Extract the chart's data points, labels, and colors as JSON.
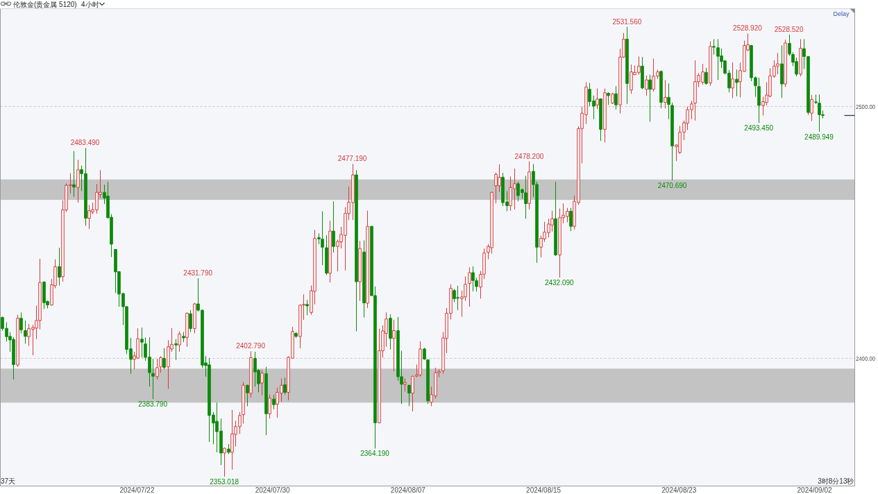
{
  "chart_data": {
    "type": "candlestick",
    "title": "伦敦金(贵金属 5120)",
    "subtitle": "4小时",
    "categories": [
      null,
      null,
      null,
      null,
      null,
      null,
      null,
      null,
      null,
      null,
      null,
      null,
      null,
      null,
      null,
      null,
      null,
      null,
      null,
      null,
      null,
      null,
      null,
      null,
      null,
      null,
      null,
      null,
      null,
      null,
      null,
      null,
      null,
      null,
      null,
      null,
      "2024/07/22",
      null,
      null,
      null,
      null,
      null,
      null,
      null,
      null,
      null,
      null,
      null,
      null,
      null,
      null,
      null,
      null,
      null,
      null,
      null,
      null,
      null,
      null,
      null,
      null,
      null,
      null,
      null,
      null,
      null,
      null,
      null,
      null,
      null,
      null,
      null,
      "2024/07/30",
      null,
      null,
      null,
      null,
      null,
      null,
      null,
      null,
      null,
      null,
      null,
      null,
      null,
      null,
      null,
      null,
      null,
      null,
      null,
      null,
      null,
      null,
      null,
      null,
      null,
      null,
      null,
      null,
      null,
      null,
      null,
      null,
      null,
      null,
      null,
      "2024/08/07",
      null,
      null,
      null,
      null,
      null,
      null,
      null,
      null,
      null,
      null,
      null,
      null,
      null,
      null,
      null,
      null,
      null,
      null,
      null,
      null,
      null,
      null,
      null,
      null,
      null,
      null,
      null,
      null,
      null,
      null,
      null,
      null,
      null,
      null,
      null,
      "2024/08/15",
      null,
      null,
      null,
      null,
      null,
      null,
      null,
      null,
      null,
      null,
      null,
      null,
      null,
      null,
      null,
      null,
      null,
      null,
      null,
      null,
      null,
      null,
      null,
      null,
      null,
      null,
      null,
      null,
      null,
      null,
      null,
      null,
      null,
      null,
      null,
      "2024/08/23",
      null,
      null,
      null,
      null,
      null,
      null,
      null,
      null,
      null,
      null,
      null,
      null,
      null,
      null,
      null,
      null,
      null,
      null,
      null,
      null,
      null,
      null,
      null,
      null,
      null,
      null,
      null,
      null,
      null,
      null,
      null,
      null,
      null,
      null,
      null,
      "2024/09/02",
      null,
      null
    ],
    "ohlc": [
      [
        2416.2,
        2416.6,
        2410.9,
        2411.8
      ],
      [
        2411.9,
        2414.3,
        2406.7,
        2408.6
      ],
      [
        2408.7,
        2410.4,
        2402.6,
        2407.3
      ],
      [
        2407.5,
        2408.4,
        2391.6,
        2397.5
      ],
      [
        2397.3,
        2417.3,
        2396.6,
        2415.9
      ],
      [
        2415.9,
        2418.2,
        2409.9,
        2411.3
      ],
      [
        2411.0,
        2415.0,
        2405.8,
        2408.7
      ],
      [
        2408.6,
        2413.6,
        2404.9,
        2411.8
      ],
      [
        2411.5,
        2413.3,
        2401.2,
        2412.2
      ],
      [
        2412.0,
        2420.9,
        2407.6,
        2415.0
      ],
      [
        2415.0,
        2439.5,
        2411.5,
        2430.1
      ],
      [
        2430.3,
        2430.6,
        2419.6,
        2422.1
      ],
      [
        2422.6,
        2422.9,
        2419.8,
        2421.2
      ],
      [
        2421.2,
        2431.5,
        2420.9,
        2429.2
      ],
      [
        2428.8,
        2439.3,
        2427.8,
        2436.4
      ],
      [
        2436.4,
        2443.9,
        2428.9,
        2432.2
      ],
      [
        2432.4,
        2462.7,
        2430.4,
        2458.9
      ],
      [
        2458.9,
        2469.4,
        2458.1,
        2468.7
      ],
      [
        2468.6,
        2473.5,
        2465.5,
        2468.9
      ],
      [
        2468.9,
        2482.2,
        2464.1,
        2468.0
      ],
      [
        2467.8,
        2478.8,
        2461.8,
        2474.8
      ],
      [
        2474.9,
        2476.5,
        2466.4,
        2473.3
      ],
      [
        2473.3,
        2483.49,
        2452.6,
        2455.6
      ],
      [
        2455.6,
        2460.9,
        2451.3,
        2458.6
      ],
      [
        2458.1,
        2461.8,
        2457.2,
        2459.0
      ],
      [
        2458.9,
        2469.2,
        2457.4,
        2465.9
      ],
      [
        2465.0,
        2474.7,
        2463.6,
        2465.9
      ],
      [
        2465.9,
        2468.9,
        2461.3,
        2463.6
      ],
      [
        2464.4,
        2470.1,
        2455.5,
        2455.8
      ],
      [
        2456.0,
        2457.2,
        2440.2,
        2445.3
      ],
      [
        2443.2,
        2443.4,
        2426.0,
        2434.3
      ],
      [
        2434.4,
        2434.6,
        2420.5,
        2425.5
      ],
      [
        2425.7,
        2426.0,
        2413.2,
        2420.5
      ],
      [
        2420.5,
        2420.8,
        2401.7,
        2403.5
      ],
      [
        2403.8,
        2408.1,
        2393.9,
        2399.6
      ],
      [
        2399.6,
        2402.6,
        2395.7,
        2401.0
      ],
      [
        2400.1,
        2411.9,
        2399.8,
        2407.8
      ],
      [
        2407.6,
        2412.2,
        2400.3,
        2406.4
      ],
      [
        2405.7,
        2408.3,
        2399.0,
        2400.4
      ],
      [
        2400.5,
        2408.3,
        2388.8,
        2394.3
      ],
      [
        2394.0,
        2399.8,
        2383.79,
        2392.9
      ],
      [
        2392.7,
        2399.8,
        2391.6,
        2396.3
      ],
      [
        2396.6,
        2400.8,
        2394.3,
        2400.3
      ],
      [
        2400.0,
        2404.0,
        2395.7,
        2396.4
      ],
      [
        2396.6,
        2407.2,
        2387.9,
        2404.6
      ],
      [
        2403.7,
        2412.0,
        2402.6,
        2405.5
      ],
      [
        2405.8,
        2407.6,
        2399.4,
        2405.3
      ],
      [
        2405.3,
        2410.7,
        2402.6,
        2409.7
      ],
      [
        2408.7,
        2410.4,
        2406.4,
        2408.1
      ],
      [
        2408.3,
        2418.2,
        2404.6,
        2417.9
      ],
      [
        2417.7,
        2419.1,
        2410.4,
        2411.8
      ],
      [
        2411.8,
        2422.0,
        2409.9,
        2421.6
      ],
      [
        2421.6,
        2431.79,
        2418.6,
        2419.1
      ],
      [
        2419.1,
        2419.3,
        2396.2,
        2397.3
      ],
      [
        2398.2,
        2400.9,
        2392.7,
        2397.1
      ],
      [
        2397.4,
        2400.1,
        2366.8,
        2377.3
      ],
      [
        2377.5,
        2378.7,
        2365.9,
        2374.3
      ],
      [
        2375.0,
        2382.4,
        2362.7,
        2370.9
      ],
      [
        2371.1,
        2376.1,
        2357.6,
        2362.4
      ],
      [
        2362.4,
        2364.5,
        2353.018,
        2364.3
      ],
      [
        2364.0,
        2365.9,
        2362.0,
        2362.7
      ],
      [
        2362.7,
        2379.5,
        2355.8,
        2370.0
      ],
      [
        2369.8,
        2375.2,
        2365.0,
        2372.9
      ],
      [
        2372.9,
        2378.7,
        2370.0,
        2377.3
      ],
      [
        2377.6,
        2390.6,
        2374.1,
        2389.3
      ],
      [
        2389.3,
        2389.5,
        2381.0,
        2386.3
      ],
      [
        2386.1,
        2402.79,
        2384.4,
        2400.3
      ],
      [
        2400.0,
        2402.6,
        2388.8,
        2394.6
      ],
      [
        2395.2,
        2395.7,
        2386.5,
        2389.9
      ],
      [
        2390.2,
        2395.4,
        2385.3,
        2394.1
      ],
      [
        2393.9,
        2396.6,
        2369.5,
        2378.0
      ],
      [
        2378.0,
        2385.6,
        2376.1,
        2384.2
      ],
      [
        2383.8,
        2385.6,
        2379.8,
        2381.6
      ],
      [
        2381.8,
        2388.4,
        2376.4,
        2386.5
      ],
      [
        2386.2,
        2392.0,
        2382.8,
        2389.3
      ],
      [
        2389.5,
        2392.3,
        2385.6,
        2386.5
      ],
      [
        2386.5,
        2400.8,
        2383.3,
        2400.4
      ],
      [
        2400.0,
        2412.5,
        2399.9,
        2410.7
      ],
      [
        2409.9,
        2410.4,
        2408.1,
        2408.7
      ],
      [
        2408.7,
        2421.4,
        2404.0,
        2421.1
      ],
      [
        2421.1,
        2425.4,
        2415.3,
        2421.4
      ],
      [
        2421.4,
        2423.2,
        2417.1,
        2420.8
      ],
      [
        2418.2,
        2428.9,
        2417.3,
        2426.8
      ],
      [
        2426.6,
        2451.0,
        2421.4,
        2447.6
      ],
      [
        2447.9,
        2449.6,
        2445.3,
        2447.4
      ],
      [
        2447.3,
        2458.3,
        2437.0,
        2444.1
      ],
      [
        2443.9,
        2448.9,
        2433.1,
        2433.8
      ],
      [
        2433.8,
        2454.6,
        2430.1,
        2450.5
      ],
      [
        2450.5,
        2462.3,
        2442.0,
        2444.4
      ],
      [
        2444.4,
        2447.1,
        2434.5,
        2446.4
      ],
      [
        2446.2,
        2452.2,
        2443.6,
        2449.2
      ],
      [
        2448.8,
        2460.0,
        2434.9,
        2457.5
      ],
      [
        2457.5,
        2468.2,
        2454.9,
        2462.0
      ],
      [
        2461.8,
        2477.19,
        2454.9,
        2472.8
      ],
      [
        2472.8,
        2474.7,
        2410.7,
        2430.4
      ],
      [
        2430.4,
        2446.6,
        2422.8,
        2443.6
      ],
      [
        2442.2,
        2446.8,
        2416.2,
        2422.0
      ],
      [
        2421.9,
        2458.6,
        2420.0,
        2452.4
      ],
      [
        2452.4,
        2452.6,
        2424.7,
        2424.9
      ],
      [
        2424.9,
        2428.5,
        2364.19,
        2374.4
      ],
      [
        2374.4,
        2411.8,
        2374.2,
        2403.0
      ],
      [
        2403.0,
        2413.1,
        2400.3,
        2410.9
      ],
      [
        2409.9,
        2418.2,
        2404.6,
        2415.6
      ],
      [
        2415.9,
        2417.5,
        2403.5,
        2407.9
      ],
      [
        2407.9,
        2415.3,
        2394.8,
        2411.0
      ],
      [
        2411.0,
        2416.4,
        2391.1,
        2392.7
      ],
      [
        2392.7,
        2403.0,
        2381.9,
        2389.7
      ],
      [
        2389.7,
        2392.0,
        2386.8,
        2390.4
      ],
      [
        2389.3,
        2389.5,
        2381.0,
        2386.2
      ],
      [
        2386.2,
        2393.0,
        2378.9,
        2392.9
      ],
      [
        2392.9,
        2397.5,
        2392.5,
        2393.4
      ],
      [
        2393.4,
        2406.7,
        2392.7,
        2403.7
      ],
      [
        2403.7,
        2404.2,
        2399.4,
        2399.7
      ],
      [
        2399.4,
        2399.6,
        2381.9,
        2383.1
      ],
      [
        2382.6,
        2388.8,
        2381.0,
        2385.6
      ],
      [
        2385.1,
        2396.3,
        2384.0,
        2394.3
      ],
      [
        2394.3,
        2395.7,
        2392.5,
        2394.8
      ],
      [
        2395.1,
        2410.4,
        2393.9,
        2408.1
      ],
      [
        2407.9,
        2420.0,
        2402.1,
        2417.9
      ],
      [
        2417.9,
        2429.4,
        2415.4,
        2427.8
      ],
      [
        2426.9,
        2427.6,
        2422.3,
        2423.7
      ],
      [
        2424.1,
        2428.8,
        2419.1,
        2423.9
      ],
      [
        2423.7,
        2426.9,
        2416.5,
        2424.4
      ],
      [
        2424.4,
        2432.5,
        2422.8,
        2429.4
      ],
      [
        2429.7,
        2436.1,
        2420.5,
        2434.0
      ],
      [
        2434.0,
        2436.5,
        2426.6,
        2430.9
      ],
      [
        2430.8,
        2432.0,
        2426.5,
        2428.5
      ],
      [
        2428.3,
        2434.7,
        2423.7,
        2433.3
      ],
      [
        2433.4,
        2443.6,
        2431.5,
        2441.8
      ],
      [
        2442.1,
        2445.3,
        2439.3,
        2444.4
      ],
      [
        2443.9,
        2466.0,
        2441.6,
        2465.9
      ],
      [
        2468.5,
        2473.7,
        2461.5,
        2473.0
      ],
      [
        2468.5,
        2477.0,
        2466.0,
        2471.9
      ],
      [
        2471.9,
        2473.6,
        2460.4,
        2461.8
      ],
      [
        2462.1,
        2466.4,
        2458.4,
        2460.6
      ],
      [
        2460.6,
        2472.2,
        2458.6,
        2467.8
      ],
      [
        2467.3,
        2475.3,
        2459.1,
        2469.3
      ],
      [
        2469.3,
        2470.1,
        2462.3,
        2464.6
      ],
      [
        2467.0,
        2467.3,
        2463.4,
        2465.8
      ],
      [
        2465.7,
        2472.4,
        2455.4,
        2461.4
      ],
      [
        2461.5,
        2478.2,
        2459.1,
        2474.0
      ],
      [
        2474.2,
        2477.1,
        2464.1,
        2469.0
      ],
      [
        2469.0,
        2470.1,
        2437.9,
        2444.1
      ],
      [
        2444.1,
        2448.7,
        2440.1,
        2447.6
      ],
      [
        2447.4,
        2454.2,
        2446.2,
        2450.1
      ],
      [
        2449.9,
        2455.4,
        2448.0,
        2453.3
      ],
      [
        2452.9,
        2458.6,
        2450.3,
        2455.4
      ],
      [
        2455.4,
        2470.1,
        2440.7,
        2441.0
      ],
      [
        2441.0,
        2459.5,
        2432.09,
        2455.8
      ],
      [
        2455.8,
        2461.5,
        2453.6,
        2456.8
      ],
      [
        2456.3,
        2459.7,
        2454.0,
        2458.4
      ],
      [
        2458.4,
        2459.7,
        2450.5,
        2452.4
      ],
      [
        2452.4,
        2464.6,
        2451.1,
        2462.3
      ],
      [
        2461.8,
        2492.1,
        2460.9,
        2491.2
      ],
      [
        2491.2,
        2499.9,
        2477.4,
        2497.3
      ],
      [
        2496.7,
        2509.6,
        2493.0,
        2507.7
      ],
      [
        2506.8,
        2509.3,
        2500.1,
        2501.9
      ],
      [
        2502.2,
        2504.3,
        2494.9,
        2500.1
      ],
      [
        2500.6,
        2507.1,
        2499.0,
        2502.9
      ],
      [
        2503.0,
        2503.2,
        2486.3,
        2490.9
      ],
      [
        2490.9,
        2507.1,
        2485.7,
        2505.4
      ],
      [
        2505.2,
        2505.6,
        2500.6,
        2504.3
      ],
      [
        2501.3,
        2505.4,
        2501.0,
        2505.0
      ],
      [
        2505.0,
        2508.0,
        2498.8,
        2500.6
      ],
      [
        2500.6,
        2522.9,
        2497.2,
        2519.6
      ],
      [
        2519.6,
        2529.1,
        2519.2,
        2526.7
      ],
      [
        2526.7,
        2531.56,
        2501.0,
        2509.1
      ],
      [
        2506.5,
        2516.6,
        2505.0,
        2513.7
      ],
      [
        2512.6,
        2516.3,
        2512.4,
        2513.5
      ],
      [
        2513.5,
        2519.8,
        2512.6,
        2516.0
      ],
      [
        2516.0,
        2519.6,
        2506.8,
        2507.3
      ],
      [
        2506.8,
        2512.3,
        2504.3,
        2510.5
      ],
      [
        2510.5,
        2512.6,
        2493.9,
        2506.8
      ],
      [
        2506.8,
        2519.0,
        2505.9,
        2512.0
      ],
      [
        2512.0,
        2514.6,
        2510.9,
        2513.7
      ],
      [
        2513.9,
        2514.3,
        2499.2,
        2501.6
      ],
      [
        2501.6,
        2510.5,
        2499.2,
        2503.6
      ],
      [
        2503.6,
        2509.1,
        2494.9,
        2500.8
      ],
      [
        2500.4,
        2501.5,
        2470.69,
        2484.3
      ],
      [
        2484.1,
        2484.9,
        2478.3,
        2484.7
      ],
      [
        2481.7,
        2492.3,
        2481.1,
        2489.8
      ],
      [
        2489.8,
        2494.4,
        2486.6,
        2493.5
      ],
      [
        2493.3,
        2499.9,
        2490.6,
        2498.7
      ],
      [
        2498.7,
        2502.2,
        2494.9,
        2501.0
      ],
      [
        2501.3,
        2518.3,
        2494.4,
        2509.8
      ],
      [
        2509.8,
        2513.2,
        2507.7,
        2512.3
      ],
      [
        2509.6,
        2516.9,
        2508.6,
        2513.7
      ],
      [
        2513.5,
        2515.3,
        2508.6,
        2509.1
      ],
      [
        2509.3,
        2525.8,
        2508.2,
        2523.8
      ],
      [
        2523.8,
        2526.7,
        2520.6,
        2523.5
      ],
      [
        2523.3,
        2526.7,
        2510.5,
        2519.9
      ],
      [
        2520.1,
        2523.0,
        2515.3,
        2517.8
      ],
      [
        2518.1,
        2518.3,
        2512.8,
        2513.2
      ],
      [
        2513.2,
        2514.4,
        2505.6,
        2507.3
      ],
      [
        2507.3,
        2517.5,
        2503.3,
        2510.9
      ],
      [
        2510.8,
        2514.6,
        2504.0,
        2509.5
      ],
      [
        2509.8,
        2517.4,
        2503.6,
        2514.2
      ],
      [
        2513.9,
        2526.1,
        2513.7,
        2524.2
      ],
      [
        2522.4,
        2528.92,
        2521.9,
        2524.5
      ],
      [
        2524.2,
        2524.4,
        2510.0,
        2511.4
      ],
      [
        2511.4,
        2511.9,
        2503.8,
        2508.2
      ],
      [
        2507.9,
        2511.4,
        2493.45,
        2500.4
      ],
      [
        2500.4,
        2503.8,
        2496.4,
        2501.9
      ],
      [
        2501.6,
        2509.6,
        2500.4,
        2504.5
      ],
      [
        2504.1,
        2515.1,
        2503.6,
        2512.1
      ],
      [
        2512.0,
        2518.3,
        2511.4,
        2516.0
      ],
      [
        2516.0,
        2521.2,
        2512.8,
        2516.9
      ],
      [
        2516.9,
        2524.2,
        2503.4,
        2508.9
      ],
      [
        2508.9,
        2526.5,
        2507.7,
        2525.2
      ],
      [
        2525.0,
        2528.52,
        2520.1,
        2520.8
      ],
      [
        2520.6,
        2521.5,
        2516.0,
        2517.5
      ],
      [
        2517.8,
        2519.4,
        2511.9,
        2512.8
      ],
      [
        2512.8,
        2526.7,
        2511.9,
        2523.1
      ],
      [
        2522.9,
        2526.7,
        2514.8,
        2519.8
      ],
      [
        2519.8,
        2520.0,
        2496.7,
        2497.6
      ],
      [
        2497.3,
        2504.5,
        2494.2,
        2502.7
      ],
      [
        2501.8,
        2504.7,
        2501.0,
        2501.5
      ],
      [
        2501.3,
        2504.7,
        2489.949,
        2496.7
      ],
      [
        2496.7,
        2498.3,
        2495.3,
        2496.4
      ]
    ],
    "colors": [
      "#0b8a0b",
      "#0b8a0b",
      "#0b8a0b",
      "#0b8a0b",
      "#d63a3a",
      "#0b8a0b",
      "#0b8a0b",
      "#d63a3a",
      "#d63a3a",
      "#d63a3a",
      "#d63a3a",
      "#0b8a0b",
      "#0b8a0b",
      "#d63a3a",
      "#d63a3a",
      "#0b8a0b",
      "#d63a3a",
      "#d63a3a",
      "#d63a3a",
      "#0b8a0b",
      "#d63a3a",
      "#0b8a0b",
      "#0b8a0b",
      "#d63a3a",
      "#d63a3a",
      "#d63a3a",
      "#d63a3a",
      "#0b8a0b",
      "#0b8a0b",
      "#0b8a0b",
      "#0b8a0b",
      "#0b8a0b",
      "#0b8a0b",
      "#0b8a0b",
      "#0b8a0b",
      "#d63a3a",
      "#d63a3a",
      "#0b8a0b",
      "#0b8a0b",
      "#0b8a0b",
      "#0b8a0b",
      "#d63a3a",
      "#d63a3a",
      "#0b8a0b",
      "#d63a3a",
      "#d63a3a",
      "#0b8a0b",
      "#d63a3a",
      "#0b8a0b",
      "#d63a3a",
      "#0b8a0b",
      "#d63a3a",
      "#0b8a0b",
      "#0b8a0b",
      "#0b8a0b",
      "#0b8a0b",
      "#0b8a0b",
      "#0b8a0b",
      "#0b8a0b",
      "#d63a3a",
      "#0b8a0b",
      "#d63a3a",
      "#d63a3a",
      "#d63a3a",
      "#d63a3a",
      "#0b8a0b",
      "#d63a3a",
      "#0b8a0b",
      "#0b8a0b",
      "#d63a3a",
      "#0b8a0b",
      "#d63a3a",
      "#0b8a0b",
      "#d63a3a",
      "#d63a3a",
      "#0b8a0b",
      "#d63a3a",
      "#d63a3a",
      "#0b8a0b",
      "#d63a3a",
      "#d63a3a",
      "#0b8a0b",
      "#d63a3a",
      "#d63a3a",
      "#0b8a0b",
      "#0b8a0b",
      "#0b8a0b",
      "#d63a3a",
      "#0b8a0b",
      "#d63a3a",
      "#d63a3a",
      "#d63a3a",
      "#d63a3a",
      "#d63a3a",
      "#0b8a0b",
      "#d63a3a",
      "#0b8a0b",
      "#d63a3a",
      "#0b8a0b",
      "#0b8a0b",
      "#d63a3a",
      "#d63a3a",
      "#d63a3a",
      "#0b8a0b",
      "#d63a3a",
      "#0b8a0b",
      "#0b8a0b",
      "#d63a3a",
      "#0b8a0b",
      "#d63a3a",
      "#d63a3a",
      "#d63a3a",
      "#0b8a0b",
      "#0b8a0b",
      "#d63a3a",
      "#d63a3a",
      "#d63a3a",
      "#d63a3a",
      "#d63a3a",
      "#d63a3a",
      "#0b8a0b",
      "#0b8a0b",
      "#d63a3a",
      "#d63a3a",
      "#d63a3a",
      "#0b8a0b",
      "#0b8a0b",
      "#d63a3a",
      "#d63a3a",
      "#d63a3a",
      "#d63a3a",
      "#d63a3a",
      "#d63a3a",
      "#0b8a0b",
      "#0b8a0b",
      "#d63a3a",
      "#d63a3a",
      "#0b8a0b",
      "#0b8a0b",
      "#0b8a0b",
      "#d63a3a",
      "#0b8a0b",
      "#0b8a0b",
      "#d63a3a",
      "#d63a3a",
      "#d63a3a",
      "#d63a3a",
      "#0b8a0b",
      "#d63a3a",
      "#d63a3a",
      "#d63a3a",
      "#0b8a0b",
      "#d63a3a",
      "#d63a3a",
      "#d63a3a",
      "#d63a3a",
      "#0b8a0b",
      "#0b8a0b",
      "#d63a3a",
      "#0b8a0b",
      "#d63a3a",
      "#0b8a0b",
      "#d63a3a",
      "#0b8a0b",
      "#d63a3a",
      "#d63a3a",
      "#0b8a0b",
      "#d63a3a",
      "#d63a3a",
      "#d63a3a",
      "#0b8a0b",
      "#d63a3a",
      "#0b8a0b",
      "#d63a3a",
      "#d63a3a",
      "#0b8a0b",
      "#d63a3a",
      "#0b8a0b",
      "#0b8a0b",
      "#d63a3a",
      "#d63a3a",
      "#d63a3a",
      "#d63a3a",
      "#d63a3a",
      "#d63a3a",
      "#d63a3a",
      "#d63a3a",
      "#0b8a0b",
      "#d63a3a",
      "#0b8a0b",
      "#0b8a0b",
      "#0b8a0b",
      "#0b8a0b",
      "#0b8a0b",
      "#d63a3a",
      "#0b8a0b",
      "#d63a3a",
      "#d63a3a",
      "#d63a3a",
      "#0b8a0b",
      "#0b8a0b",
      "#0b8a0b",
      "#d63a3a",
      "#d63a3a",
      "#d63a3a",
      "#d63a3a",
      "#d63a3a",
      "#0b8a0b",
      "#d63a3a",
      "#0b8a0b",
      "#0b8a0b",
      "#0b8a0b",
      "#d63a3a",
      "#0b8a0b",
      "#0b8a0b",
      "#d63a3a",
      "#0b8a0b",
      "#0b8a0b",
      "#0b8a0b"
    ],
    "ylim": [
      2349.3,
      2538.8
    ],
    "yticks": [
      {
        "value": 2400,
        "label": "2400.00"
      },
      {
        "value": 2500,
        "label": "2500.00"
      }
    ],
    "grid": "y",
    "bands": [
      {
        "axis": "y",
        "from": 2462.9,
        "to": 2471.0,
        "color": "#c3c3c3"
      },
      {
        "axis": "y",
        "from": 2382.4,
        "to": 2395.9,
        "color": "#c3c3c3"
      }
    ],
    "annotations": [
      "Delay",
      "37天",
      "3时8分13秒",
      {
        "text": "2483.490",
        "y": 2483.49
      },
      {
        "text": "2383.790",
        "y": 2383.79
      },
      {
        "text": "2431.790",
        "y": 2431.79
      },
      {
        "text": "2402.790",
        "y": 2402.79
      },
      {
        "text": "2353.018",
        "y": 2353.018
      },
      {
        "text": "2477.190",
        "y": 2477.19
      },
      {
        "text": "2364.190",
        "y": 2364.19
      },
      {
        "text": "2478.200",
        "y": 2478.2
      },
      {
        "text": "2432.090",
        "y": 2432.09
      },
      {
        "text": "2531.560",
        "y": 2531.56
      },
      {
        "text": "2470.690",
        "y": 2470.69
      },
      {
        "text": "2528.920",
        "y": 2528.92
      },
      {
        "text": "2493.450",
        "y": 2493.45
      },
      {
        "text": "2528.520",
        "y": 2528.52
      },
      {
        "text": "2489.949",
        "y": 2489.949
      }
    ]
  }
}
